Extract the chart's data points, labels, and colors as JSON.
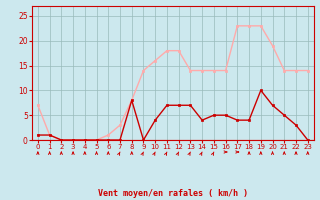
{
  "hours": [
    0,
    1,
    2,
    3,
    4,
    5,
    6,
    7,
    8,
    9,
    10,
    11,
    12,
    13,
    14,
    15,
    16,
    17,
    18,
    19,
    20,
    21,
    22,
    23
  ],
  "vent_moyen": [
    1,
    1,
    0,
    0,
    0,
    0,
    0,
    0,
    8,
    0,
    4,
    7,
    7,
    7,
    4,
    5,
    5,
    4,
    4,
    10,
    7,
    5,
    3,
    0
  ],
  "rafales": [
    7,
    1,
    0,
    0,
    0,
    0,
    1,
    3,
    8,
    14,
    16,
    18,
    18,
    14,
    14,
    14,
    14,
    23,
    23,
    23,
    19,
    14,
    14,
    14
  ],
  "color_moyen": "#cc0000",
  "color_rafales": "#ffaaaa",
  "bg_color": "#cce8ee",
  "grid_color": "#99bbbb",
  "xlabel": "Vent moyen/en rafales ( km/h )",
  "ylim": [
    0,
    27
  ],
  "yticks": [
    0,
    5,
    10,
    15,
    20,
    25
  ],
  "xlim": [
    -0.5,
    23.5
  ],
  "arrow_dirs": [
    180,
    180,
    180,
    180,
    180,
    180,
    180,
    135,
    180,
    135,
    135,
    135,
    135,
    135,
    135,
    135,
    90,
    90,
    180,
    180,
    180,
    180,
    180,
    180
  ]
}
